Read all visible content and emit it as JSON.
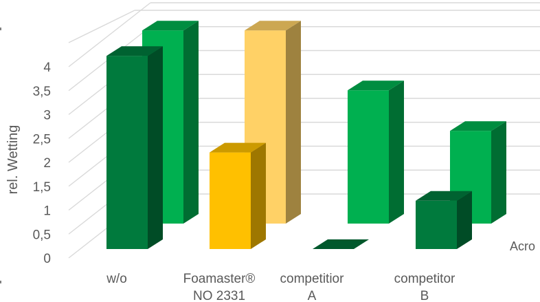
{
  "chart_data": {
    "type": "bar",
    "subtype": "3d-column",
    "ylabel": "rel. Wetting",
    "y_ticks": [
      "0",
      "0,5",
      "1",
      "1,5",
      "2",
      "2,5",
      "3",
      "3,5",
      "4"
    ],
    "ylim": [
      0,
      4
    ],
    "categories": [
      {
        "line1": "w/o",
        "line2": ""
      },
      {
        "line1": "Foamaster®",
        "line2": "NO 2331"
      },
      {
        "line1": "competitior",
        "line2": "A"
      },
      {
        "line1": "competitor",
        "line2": "B"
      }
    ],
    "series": [
      {
        "name": "Acro",
        "values": [
          4.0,
          2.0,
          0.0,
          1.0
        ],
        "colors": [
          "#007a3d",
          "#ffc000",
          "#007a3d",
          "#007a3d"
        ]
      },
      {
        "name": "",
        "values": [
          4.0,
          4.0,
          3.0,
          2.0
        ],
        "colors": [
          "#00b050",
          "#ffd166",
          "#00b050",
          "#00b050"
        ]
      }
    ],
    "grid": true,
    "legend": "none"
  }
}
